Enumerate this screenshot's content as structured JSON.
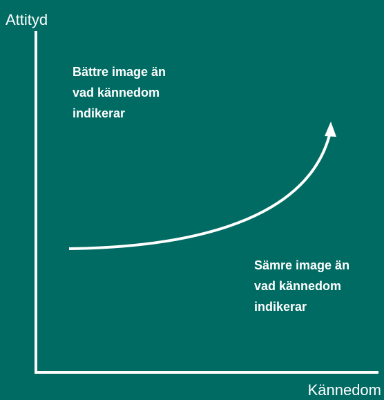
{
  "y_axis_label": "Attityd",
  "x_axis_label": "Kännedom",
  "upper_note": {
    "lines": [
      "Bättre image än",
      "vad kännedom",
      "indikerar"
    ]
  },
  "lower_note": {
    "lines": [
      "Sämre image än",
      "vad kännedom",
      "indikerar"
    ]
  }
}
